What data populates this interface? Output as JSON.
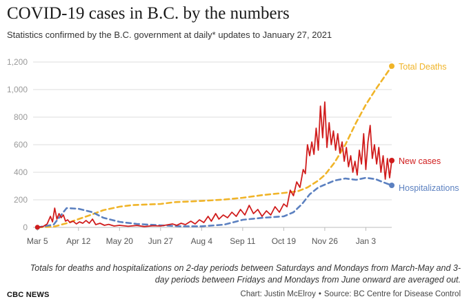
{
  "header": {
    "title": "COVID-19 cases in B.C. by the numbers",
    "subtitle": "Statistics confirmed by the B.C. government at daily* updates to January 27, 2021"
  },
  "footer": {
    "note": "Totals for deaths and hospitalizations on 2-day periods between Saturdays and Mondays from March-May and 3-day periods between Fridays and Mondays from June onward are averaged out.",
    "brand": "CBC NEWS",
    "credit": "Chart: Justin McElroy",
    "source": "Source: BC Centre for Disease Control",
    "separator": "•"
  },
  "chart_data": {
    "type": "line",
    "x_type": "date",
    "xlim": [
      "2020-03-01",
      "2021-01-27"
    ],
    "ylim": [
      0,
      1200
    ],
    "y_ticks": [
      0,
      200,
      400,
      600,
      800,
      1000,
      1200
    ],
    "y_tick_labels": [
      "0",
      "200",
      "400",
      "600",
      "800",
      "1,000",
      "1,200"
    ],
    "x_ticks": [
      "2020-03-05",
      "2020-04-12",
      "2020-05-20",
      "2020-06-27",
      "2020-08-04",
      "2020-09-11",
      "2020-10-19",
      "2020-11-26",
      "2021-01-03"
    ],
    "x_tick_labels": [
      "Mar 5",
      "Apr 12",
      "May 20",
      "Jun 27",
      "Aug 4",
      "Sep 11",
      "Oct 19",
      "Nov 26",
      "Jan 3"
    ],
    "grid": true,
    "xlabel": "",
    "ylabel": "",
    "colors": {
      "new_cases": "#d01c1c",
      "total_deaths": "#f0b428",
      "hospitalizations": "#5b80c0",
      "grid": "#dddddd",
      "axis_text": "#999999"
    },
    "series": [
      {
        "name": "Total Deaths",
        "key": "total_deaths",
        "style": "dashed",
        "points": [
          [
            "2020-03-05",
            0
          ],
          [
            "2020-03-20",
            5
          ],
          [
            "2020-04-01",
            30
          ],
          [
            "2020-04-12",
            60
          ],
          [
            "2020-04-25",
            95
          ],
          [
            "2020-05-05",
            125
          ],
          [
            "2020-05-20",
            150
          ],
          [
            "2020-06-01",
            162
          ],
          [
            "2020-06-27",
            170
          ],
          [
            "2020-07-10",
            183
          ],
          [
            "2020-08-04",
            192
          ],
          [
            "2020-08-25",
            202
          ],
          [
            "2020-09-11",
            215
          ],
          [
            "2020-09-30",
            235
          ],
          [
            "2020-10-19",
            250
          ],
          [
            "2020-11-01",
            262
          ],
          [
            "2020-11-10",
            290
          ],
          [
            "2020-11-20",
            340
          ],
          [
            "2020-11-26",
            380
          ],
          [
            "2020-12-05",
            470
          ],
          [
            "2020-12-15",
            600
          ],
          [
            "2020-12-25",
            760
          ],
          [
            "2021-01-03",
            890
          ],
          [
            "2021-01-12",
            1000
          ],
          [
            "2021-01-20",
            1090
          ],
          [
            "2021-01-27",
            1170
          ]
        ]
      },
      {
        "name": "New cases",
        "key": "new_cases",
        "style": "solid",
        "points": [
          [
            "2020-03-05",
            1
          ],
          [
            "2020-03-10",
            5
          ],
          [
            "2020-03-14",
            25
          ],
          [
            "2020-03-17",
            80
          ],
          [
            "2020-03-19",
            40
          ],
          [
            "2020-03-21",
            140
          ],
          [
            "2020-03-23",
            60
          ],
          [
            "2020-03-25",
            100
          ],
          [
            "2020-03-27",
            70
          ],
          [
            "2020-03-29",
            90
          ],
          [
            "2020-03-31",
            45
          ],
          [
            "2020-04-02",
            55
          ],
          [
            "2020-04-04",
            35
          ],
          [
            "2020-04-07",
            45
          ],
          [
            "2020-04-10",
            25
          ],
          [
            "2020-04-13",
            40
          ],
          [
            "2020-04-16",
            30
          ],
          [
            "2020-04-19",
            50
          ],
          [
            "2020-04-22",
            30
          ],
          [
            "2020-04-25",
            60
          ],
          [
            "2020-04-28",
            20
          ],
          [
            "2020-05-02",
            30
          ],
          [
            "2020-05-06",
            15
          ],
          [
            "2020-05-10",
            22
          ],
          [
            "2020-05-15",
            10
          ],
          [
            "2020-05-20",
            15
          ],
          [
            "2020-05-28",
            8
          ],
          [
            "2020-06-05",
            14
          ],
          [
            "2020-06-12",
            6
          ],
          [
            "2020-06-20",
            12
          ],
          [
            "2020-06-27",
            10
          ],
          [
            "2020-07-03",
            18
          ],
          [
            "2020-07-08",
            25
          ],
          [
            "2020-07-12",
            15
          ],
          [
            "2020-07-16",
            30
          ],
          [
            "2020-07-20",
            20
          ],
          [
            "2020-07-25",
            45
          ],
          [
            "2020-07-29",
            25
          ],
          [
            "2020-08-02",
            55
          ],
          [
            "2020-08-06",
            35
          ],
          [
            "2020-08-10",
            80
          ],
          [
            "2020-08-13",
            45
          ],
          [
            "2020-08-17",
            100
          ],
          [
            "2020-08-20",
            60
          ],
          [
            "2020-08-24",
            90
          ],
          [
            "2020-08-28",
            70
          ],
          [
            "2020-09-01",
            110
          ],
          [
            "2020-09-05",
            80
          ],
          [
            "2020-09-09",
            130
          ],
          [
            "2020-09-13",
            90
          ],
          [
            "2020-09-17",
            160
          ],
          [
            "2020-09-21",
            100
          ],
          [
            "2020-09-25",
            130
          ],
          [
            "2020-09-29",
            80
          ],
          [
            "2020-10-03",
            120
          ],
          [
            "2020-10-07",
            90
          ],
          [
            "2020-10-11",
            150
          ],
          [
            "2020-10-15",
            110
          ],
          [
            "2020-10-19",
            170
          ],
          [
            "2020-10-22",
            150
          ],
          [
            "2020-10-25",
            270
          ],
          [
            "2020-10-28",
            230
          ],
          [
            "2020-10-31",
            330
          ],
          [
            "2020-11-03",
            290
          ],
          [
            "2020-11-06",
            420
          ],
          [
            "2020-11-08",
            390
          ],
          [
            "2020-11-10",
            600
          ],
          [
            "2020-11-12",
            520
          ],
          [
            "2020-11-14",
            620
          ],
          [
            "2020-11-16",
            530
          ],
          [
            "2020-11-18",
            720
          ],
          [
            "2020-11-20",
            560
          ],
          [
            "2020-11-22",
            880
          ],
          [
            "2020-11-24",
            650
          ],
          [
            "2020-11-26",
            910
          ],
          [
            "2020-11-28",
            580
          ],
          [
            "2020-11-30",
            760
          ],
          [
            "2020-12-02",
            600
          ],
          [
            "2020-12-04",
            700
          ],
          [
            "2020-12-06",
            560
          ],
          [
            "2020-12-08",
            680
          ],
          [
            "2020-12-10",
            540
          ],
          [
            "2020-12-12",
            620
          ],
          [
            "2020-12-14",
            480
          ],
          [
            "2020-12-16",
            580
          ],
          [
            "2020-12-18",
            440
          ],
          [
            "2020-12-20",
            520
          ],
          [
            "2020-12-22",
            400
          ],
          [
            "2020-12-24",
            480
          ],
          [
            "2020-12-26",
            380
          ],
          [
            "2020-12-28",
            560
          ],
          [
            "2020-12-30",
            460
          ],
          [
            "2021-01-01",
            680
          ],
          [
            "2021-01-03",
            420
          ],
          [
            "2021-01-05",
            620
          ],
          [
            "2021-01-07",
            740
          ],
          [
            "2021-01-09",
            500
          ],
          [
            "2021-01-11",
            600
          ],
          [
            "2021-01-13",
            460
          ],
          [
            "2021-01-15",
            580
          ],
          [
            "2021-01-17",
            400
          ],
          [
            "2021-01-19",
            520
          ],
          [
            "2021-01-21",
            350
          ],
          [
            "2021-01-23",
            500
          ],
          [
            "2021-01-25",
            360
          ],
          [
            "2021-01-27",
            485
          ]
        ]
      },
      {
        "name": "Hospitalizations",
        "key": "hospitalizations",
        "style": "dashed",
        "points": [
          [
            "2020-03-05",
            0
          ],
          [
            "2020-03-20",
            20
          ],
          [
            "2020-04-01",
            140
          ],
          [
            "2020-04-12",
            135
          ],
          [
            "2020-04-25",
            110
          ],
          [
            "2020-05-05",
            70
          ],
          [
            "2020-05-20",
            40
          ],
          [
            "2020-06-05",
            25
          ],
          [
            "2020-06-27",
            15
          ],
          [
            "2020-07-15",
            8
          ],
          [
            "2020-08-04",
            8
          ],
          [
            "2020-08-25",
            20
          ],
          [
            "2020-09-11",
            55
          ],
          [
            "2020-09-30",
            70
          ],
          [
            "2020-10-19",
            80
          ],
          [
            "2020-10-28",
            110
          ],
          [
            "2020-11-05",
            170
          ],
          [
            "2020-11-12",
            240
          ],
          [
            "2020-11-20",
            290
          ],
          [
            "2020-11-26",
            310
          ],
          [
            "2020-12-05",
            340
          ],
          [
            "2020-12-15",
            355
          ],
          [
            "2020-12-25",
            345
          ],
          [
            "2021-01-03",
            360
          ],
          [
            "2021-01-12",
            350
          ],
          [
            "2021-01-20",
            325
          ],
          [
            "2021-01-27",
            305
          ]
        ]
      }
    ]
  }
}
